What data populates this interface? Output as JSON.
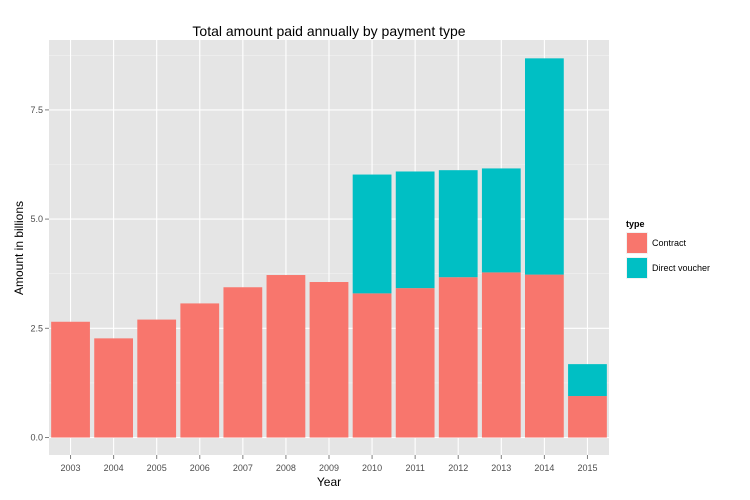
{
  "chart_data": {
    "type": "bar",
    "stacked": true,
    "title": "Total amount paid annually by payment type",
    "xlabel": "Year",
    "ylabel": "Amount in billions",
    "categories": [
      "2003",
      "2004",
      "2005",
      "2006",
      "2007",
      "2008",
      "2009",
      "2010",
      "2011",
      "2012",
      "2013",
      "2014",
      "2015"
    ],
    "series": [
      {
        "name": "Contract",
        "color": "#F8766D",
        "values": [
          2.65,
          2.27,
          2.7,
          3.07,
          3.44,
          3.72,
          3.56,
          3.3,
          3.42,
          3.67,
          3.78,
          3.73,
          0.95
        ]
      },
      {
        "name": "Direct voucher",
        "color": "#00BFC4",
        "values": [
          0,
          0,
          0,
          0,
          0,
          0,
          0,
          2.72,
          2.67,
          2.45,
          2.38,
          4.95,
          0.73
        ]
      }
    ],
    "ylim": [
      -0.4,
      9.1
    ],
    "yticks": [
      0.0,
      2.5,
      5.0,
      7.5
    ],
    "ytick_labels": [
      "0.0",
      "2.5",
      "5.0",
      "7.5"
    ],
    "legend": {
      "title": "type",
      "position": "right"
    },
    "panel_background": "#E5E5E5",
    "grid": true
  }
}
